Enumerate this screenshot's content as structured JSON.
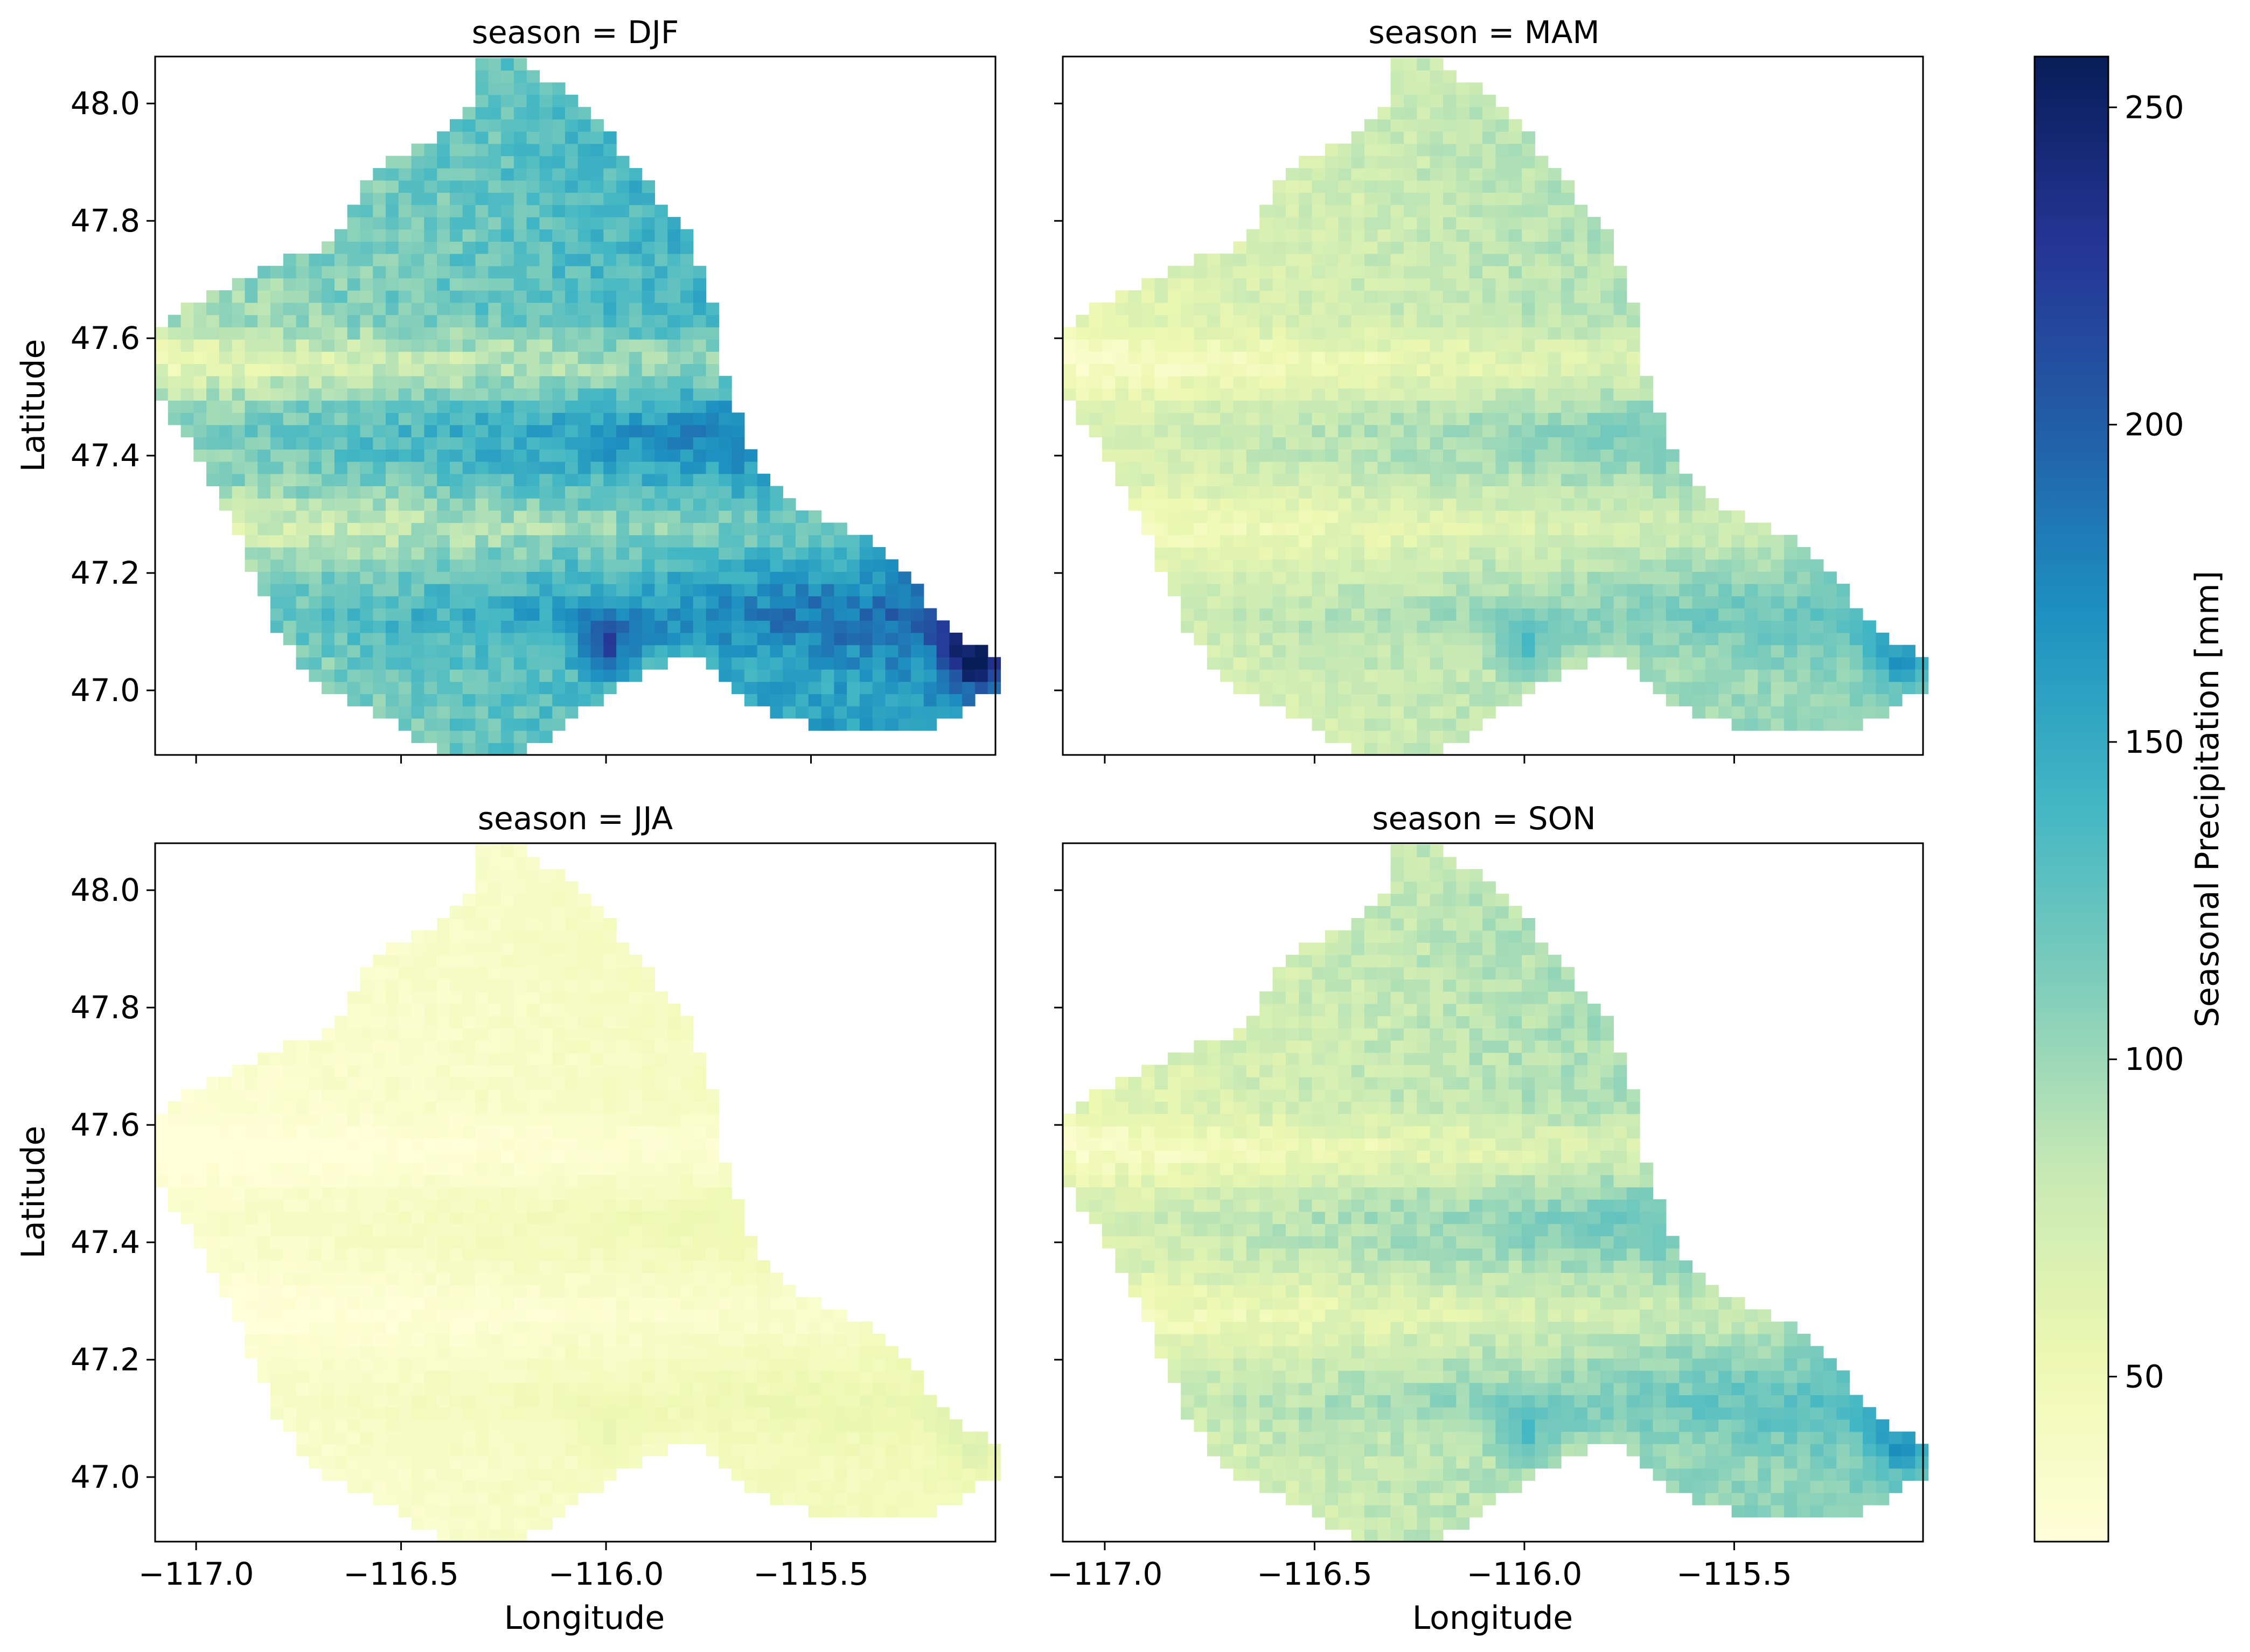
{
  "chart_data": {
    "type": "heatmap",
    "facet_label_prefix": "season = ",
    "xlabel": "Longitude",
    "ylabel": "Latitude",
    "xlim": [
      -117.1,
      -115.05
    ],
    "ylim": [
      46.89,
      48.08
    ],
    "x_ticks": [
      -117.0,
      -116.5,
      -116.0,
      -115.5
    ],
    "x_tick_labels": [
      "−117.0",
      "−116.5",
      "−116.0",
      "−115.5"
    ],
    "y_ticks": [
      47.0,
      47.2,
      47.4,
      47.6,
      47.8,
      48.0
    ],
    "y_tick_labels": [
      "47.0",
      "47.2",
      "47.4",
      "47.6",
      "47.8",
      "48.0"
    ],
    "colorbar": {
      "label": "Seasonal Precipitation [mm]",
      "colormap": "YlGnBu",
      "vmin": 24,
      "vmax": 258,
      "ticks": [
        50,
        100,
        150,
        200,
        250
      ],
      "tick_labels": [
        "50",
        "100",
        "150",
        "200",
        "250"
      ]
    },
    "panels": [
      {
        "season": "DJF",
        "title": "season = DJF",
        "mean_mm": 140,
        "west_mm": 95,
        "east_mm": 170,
        "peak_mm": 258
      },
      {
        "season": "MAM",
        "title": "season = MAM",
        "mean_mm": 85,
        "west_mm": 60,
        "east_mm": 110,
        "peak_mm": 160
      },
      {
        "season": "JJA",
        "title": "season = JJA",
        "mean_mm": 38,
        "west_mm": 30,
        "east_mm": 48,
        "peak_mm": 62
      },
      {
        "season": "SON",
        "title": "season = SON",
        "mean_mm": 90,
        "west_mm": 62,
        "east_mm": 115,
        "peak_mm": 160
      }
    ]
  }
}
